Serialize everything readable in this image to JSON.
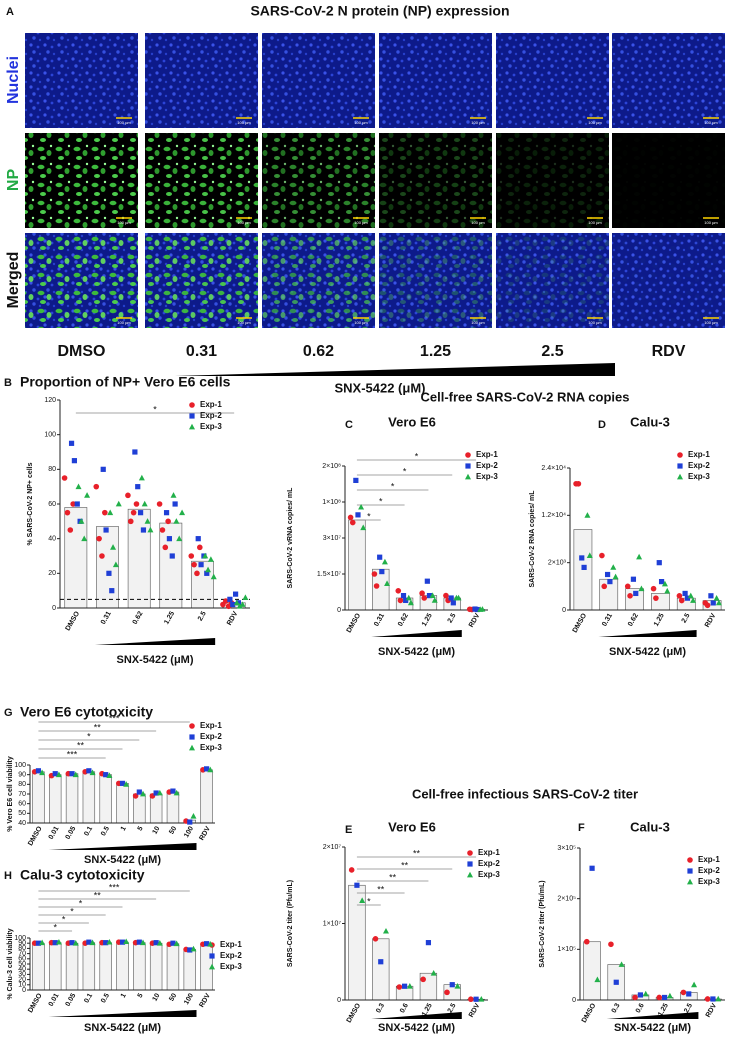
{
  "panel_a": {
    "letter": "A",
    "title": "SARS-CoV-2 N protein (NP) expression",
    "row_labels": [
      "Nuclei",
      "NP",
      "Merged"
    ],
    "column_labels": [
      "DMSO",
      "0.31",
      "0.62",
      "1.25",
      "2.5",
      "RDV"
    ],
    "scale_bar": "100 µm",
    "xlabel": "SNX-5422 (μM)"
  },
  "group_headers": [
    "Cell-free SARS-CoV-2 RNA copies",
    "Cell-free infectious SARS-CoV-2 titer"
  ],
  "chart_data": [
    {
      "type": "bar",
      "letter": "B",
      "title": "Proportion of NP+ Vero E6 cells",
      "ylabel": "% SARS-CoV-2 NP+ cells",
      "xlabel": "SNX-5422 (μM)",
      "categories": [
        "DMSO",
        "0.31",
        "0.62",
        "1.25",
        "2.5",
        "RDV"
      ],
      "values": [
        58,
        47,
        57,
        49,
        27,
        3
      ],
      "color": "#f2f2f2",
      "ylim": [
        0,
        120
      ],
      "yticks": [
        0,
        20,
        40,
        60,
        80,
        100,
        120
      ],
      "reference_line": 5,
      "significance": [
        "*"
      ],
      "series": [
        {
          "name": "Exp-1",
          "color": "#e8202a",
          "marker": "circle",
          "values": [
            [
              75,
              55,
              45,
              60
            ],
            [
              70,
              40,
              30,
              55
            ],
            [
              65,
              50,
              55,
              60
            ],
            [
              60,
              45,
              35,
              50
            ],
            [
              30,
              25,
              20,
              35
            ],
            [
              2,
              4,
              1,
              3
            ]
          ]
        },
        {
          "name": "Exp-2",
          "color": "#1f3fd6",
          "marker": "square",
          "values": [
            [
              95,
              85,
              60,
              50
            ],
            [
              80,
              45,
              20,
              10
            ],
            [
              90,
              70,
              55,
              45
            ],
            [
              55,
              40,
              30,
              60
            ],
            [
              40,
              25,
              30,
              20
            ],
            [
              5,
              2,
              8,
              3
            ]
          ]
        },
        {
          "name": "Exp-3",
          "color": "#22b04a",
          "marker": "triangle",
          "values": [
            [
              70,
              50,
              40,
              65
            ],
            [
              55,
              35,
              25,
              60
            ],
            [
              75,
              60,
              50,
              45
            ],
            [
              65,
              50,
              40,
              55
            ],
            [
              30,
              22,
              28,
              18
            ],
            [
              3,
              1,
              2,
              6
            ]
          ]
        }
      ]
    },
    {
      "type": "bar",
      "letter": "C",
      "title": "Vero E6",
      "ylabel": "SARS-CoV-2 vRNA copies/ mL",
      "xlabel": "SNX-5422 (μM)",
      "categories": [
        "DMSO",
        "0.31",
        "0.62",
        "1.25",
        "2.5",
        "RDV"
      ],
      "values": [
        65000000,
        17000000,
        5000000,
        6000000,
        5000000,
        300000
      ],
      "color": "#f2f2f2",
      "ylim": [
        0,
        200000000
      ],
      "yticks": [
        0,
        {
          "value": 15000000,
          "label": "1.5×10⁷"
        },
        {
          "value": 30000000,
          "label": "3×10⁷"
        },
        {
          "value": 100000000,
          "label": "1×10⁸"
        },
        {
          "value": 200000000,
          "label": "2×10⁸"
        }
      ],
      "significance": [
        "*",
        "*",
        "*",
        "*",
        "*"
      ],
      "series": [
        {
          "name": "Exp-1",
          "color": "#e8202a",
          "marker": "circle",
          "values": [
            [
              70000000,
              60000000
            ],
            [
              15000000,
              10000000
            ],
            [
              8000000,
              4000000
            ],
            [
              7000000,
              5000000
            ],
            [
              6000000,
              4000000
            ],
            [
              300000,
              200000
            ]
          ]
        },
        {
          "name": "Exp-2",
          "color": "#1f3fd6",
          "marker": "square",
          "values": [
            [
              160000000,
              75000000
            ],
            [
              22000000,
              16000000
            ],
            [
              6000000,
              4000000
            ],
            [
              12000000,
              6000000
            ],
            [
              5000000,
              3000000
            ],
            [
              400000,
              200000
            ]
          ]
        },
        {
          "name": "Exp-3",
          "color": "#22b04a",
          "marker": "triangle",
          "values": [
            [
              90000000,
              50000000
            ],
            [
              20000000,
              11000000
            ],
            [
              5000000,
              3000000
            ],
            [
              6000000,
              4000000
            ],
            [
              5000000,
              5000000
            ],
            [
              200000,
              300000
            ]
          ]
        }
      ]
    },
    {
      "type": "bar",
      "letter": "D",
      "title": "Calu-3",
      "ylabel": "SARS-CoV-2 RNA copies/ mL",
      "xlabel": "SNX-5422 (μM)",
      "categories": [
        "DMSO",
        "0.31",
        "0.62",
        "1.25",
        "2.5",
        "RDV"
      ],
      "values": [
        9000,
        1300,
        900,
        700,
        500,
        400
      ],
      "color": "#f2f2f2",
      "ylim": [
        0,
        24000
      ],
      "yticks": [
        0,
        {
          "value": 2000,
          "label": "2×10³"
        },
        {
          "value": 12000,
          "label": "1.2×10⁴"
        },
        {
          "value": 24000,
          "label": "2.4×10⁴"
        }
      ],
      "series": [
        {
          "name": "Exp-1",
          "color": "#e8202a",
          "marker": "circle",
          "values": [
            [
              20000,
              20000
            ],
            [
              3500,
              1000
            ],
            [
              1000,
              600
            ],
            [
              900,
              500
            ],
            [
              600,
              400
            ],
            [
              300,
              200
            ]
          ]
        },
        {
          "name": "Exp-2",
          "color": "#1f3fd6",
          "marker": "square",
          "values": [
            [
              3000,
              1800
            ],
            [
              1500,
              1200
            ],
            [
              1300,
              700
            ],
            [
              2000,
              1200
            ],
            [
              700,
              500
            ],
            [
              600,
              300
            ]
          ]
        },
        {
          "name": "Exp-3",
          "color": "#22b04a",
          "marker": "triangle",
          "values": [
            [
              12000,
              3500
            ],
            [
              1800,
              1400
            ],
            [
              3200,
              900
            ],
            [
              1100,
              800
            ],
            [
              600,
              400
            ],
            [
              500,
              300
            ]
          ]
        }
      ]
    },
    {
      "type": "bar",
      "letter": "E",
      "title": "Vero E6",
      "ylabel": "SARS-CoV-2 titer (Pfu/mL)",
      "xlabel": "SNX-5422 (μM)",
      "categories": [
        "DMSO",
        "0.3",
        "0.6",
        "1.25",
        "2.5",
        "RDV"
      ],
      "values": [
        15000000,
        8000000,
        1800000,
        3500000,
        2000000,
        100000
      ],
      "color": "#f2f2f2",
      "ylim": [
        0,
        20000000
      ],
      "yticks": [
        0,
        {
          "value": 10000000,
          "label": "1×10⁷"
        },
        {
          "value": 20000000,
          "label": "2×10⁷"
        }
      ],
      "significance": [
        "*",
        "**",
        "**",
        "**",
        "**"
      ],
      "series": [
        {
          "name": "Exp-1",
          "color": "#e8202a",
          "marker": "circle",
          "values": [
            [
              17000000
            ],
            [
              8000000
            ],
            [
              1700000
            ],
            [
              2700000
            ],
            [
              1000000
            ],
            [
              100000
            ]
          ]
        },
        {
          "name": "Exp-2",
          "color": "#1f3fd6",
          "marker": "square",
          "values": [
            [
              15000000
            ],
            [
              5000000
            ],
            [
              1800000
            ],
            [
              7500000
            ],
            [
              2000000
            ],
            [
              100000
            ]
          ]
        },
        {
          "name": "Exp-3",
          "color": "#22b04a",
          "marker": "triangle",
          "values": [
            [
              13000000
            ],
            [
              9000000
            ],
            [
              1800000
            ],
            [
              3500000
            ],
            [
              1800000
            ],
            [
              100000
            ]
          ]
        }
      ]
    },
    {
      "type": "bar",
      "letter": "F",
      "title": "Calu-3",
      "ylabel": "SARS-CoV-2 titer (Pfu/mL)",
      "xlabel": "SNX-5422 (μM)",
      "categories": [
        "DMSO",
        "0.3",
        "0.6",
        "1.25",
        "2.5",
        "RDV"
      ],
      "values": [
        115000,
        70000,
        10000,
        5000,
        15000,
        2000
      ],
      "color": "#f2f2f2",
      "ylim": [
        0,
        300000
      ],
      "yticks": [
        0,
        {
          "value": 100000,
          "label": "1×10⁵"
        },
        {
          "value": 200000,
          "label": "2×10⁵"
        },
        {
          "value": 300000,
          "label": "3×10⁵"
        }
      ],
      "series": [
        {
          "name": "Exp-1",
          "color": "#e8202a",
          "marker": "circle",
          "values": [
            [
              115000
            ],
            [
              110000
            ],
            [
              5000
            ],
            [
              5000
            ],
            [
              15000
            ],
            [
              2000
            ]
          ]
        },
        {
          "name": "Exp-2",
          "color": "#1f3fd6",
          "marker": "square",
          "values": [
            [
              260000
            ],
            [
              35000
            ],
            [
              10000
            ],
            [
              5000
            ],
            [
              12000
            ],
            [
              2000
            ]
          ]
        },
        {
          "name": "Exp-3",
          "color": "#22b04a",
          "marker": "triangle",
          "values": [
            [
              40000
            ],
            [
              70000
            ],
            [
              12000
            ],
            [
              8000
            ],
            [
              30000
            ],
            [
              2000
            ]
          ]
        }
      ]
    },
    {
      "type": "bar",
      "letter": "G",
      "title": "Vero E6 cytotoxicity",
      "ylabel": "% Vero E6 cell viability",
      "xlabel": "SNX-5422 (μM)",
      "categories": [
        "DMSO",
        "0.01",
        "0.05",
        "0.1",
        "0.5",
        "1",
        "5",
        "10",
        "50",
        "100",
        "RDV"
      ],
      "values": [
        93,
        90,
        91,
        93,
        90,
        81,
        70,
        70,
        72,
        43,
        95
      ],
      "color": "#f2f2f2",
      "ylim": [
        40,
        100
      ],
      "yticks": [
        40,
        50,
        60,
        70,
        80,
        90,
        100
      ],
      "significance": [
        "***",
        "**",
        "*",
        "**",
        "***"
      ],
      "series": [
        {
          "name": "Exp-1",
          "color": "#e8202a",
          "marker": "circle",
          "values": [
            [
              93
            ],
            [
              89
            ],
            [
              91
            ],
            [
              93
            ],
            [
              91
            ],
            [
              81
            ],
            [
              68
            ],
            [
              68
            ],
            [
              72
            ],
            [
              42
            ],
            [
              95
            ]
          ]
        },
        {
          "name": "Exp-2",
          "color": "#1f3fd6",
          "marker": "square",
          "values": [
            [
              94
            ],
            [
              91
            ],
            [
              91
            ],
            [
              94
            ],
            [
              90
            ],
            [
              81
            ],
            [
              72
            ],
            [
              71
            ],
            [
              73
            ],
            [
              41
            ],
            [
              96
            ]
          ]
        },
        {
          "name": "Exp-3",
          "color": "#22b04a",
          "marker": "triangle",
          "values": [
            [
              92
            ],
            [
              90
            ],
            [
              90
            ],
            [
              92
            ],
            [
              89
            ],
            [
              80
            ],
            [
              70
            ],
            [
              71
            ],
            [
              71
            ],
            [
              47
            ],
            [
              95
            ]
          ]
        }
      ]
    },
    {
      "type": "bar",
      "letter": "H",
      "title": "Calu-3 cytotoxicity",
      "ylabel": "% Calu-3 cell viability",
      "xlabel": "SNX-5422 (μM)",
      "categories": [
        "DMSO",
        "0.01",
        "0.05",
        "0.1",
        "0.5",
        "1",
        "5",
        "10",
        "50",
        "100",
        "RDV"
      ],
      "values": [
        90,
        91,
        90,
        91,
        91,
        92,
        91,
        90,
        89,
        78,
        88
      ],
      "color": "#f2f2f2",
      "ylim": [
        0,
        100
      ],
      "yticks": [
        0,
        10,
        20,
        30,
        40,
        50,
        60,
        70,
        80,
        90,
        100
      ],
      "significance": [
        "*",
        "*",
        "*",
        "*",
        "**",
        "***"
      ],
      "series": [
        {
          "name": "Exp-1",
          "color": "#e8202a",
          "marker": "circle",
          "values": [
            [
              90
            ],
            [
              91
            ],
            [
              90
            ],
            [
              90
            ],
            [
              91
            ],
            [
              92
            ],
            [
              91
            ],
            [
              90
            ],
            [
              88
            ],
            [
              78
            ],
            [
              88
            ]
          ]
        },
        {
          "name": "Exp-2",
          "color": "#1f3fd6",
          "marker": "square",
          "values": [
            [
              90
            ],
            [
              91
            ],
            [
              91
            ],
            [
              92
            ],
            [
              91
            ],
            [
              92
            ],
            [
              92
            ],
            [
              91
            ],
            [
              90
            ],
            [
              77
            ],
            [
              89
            ]
          ]
        },
        {
          "name": "Exp-3",
          "color": "#22b04a",
          "marker": "triangle",
          "values": [
            [
              91
            ],
            [
              92
            ],
            [
              90
            ],
            [
              91
            ],
            [
              92
            ],
            [
              93
            ],
            [
              91
            ],
            [
              90
            ],
            [
              89
            ],
            [
              79
            ],
            [
              88
            ]
          ]
        }
      ]
    }
  ]
}
